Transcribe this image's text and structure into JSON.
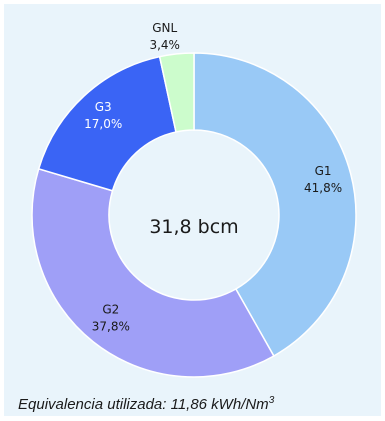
{
  "chart_data": {
    "type": "pie",
    "center_label": "31,8 bcm",
    "slices": [
      {
        "name": "G1",
        "value": 41.8,
        "label": "41,8%",
        "color": "#99c9f6",
        "text_color": "#1a1a1a"
      },
      {
        "name": "G2",
        "value": 37.8,
        "label": "37,8%",
        "color": "#9f9ff7",
        "text_color": "#1a1a1a"
      },
      {
        "name": "G3",
        "value": 17.0,
        "label": "17,0%",
        "color": "#3a64f5",
        "text_color": "#ffffff"
      },
      {
        "name": "GNL",
        "value": 3.4,
        "label": "3,4%",
        "color": "#ccfccc",
        "text_color": "#1a1a1a"
      }
    ]
  },
  "footnote": {
    "text": "Equivalencia utilizada: 11,86 kWh/Nm",
    "superscript": "3"
  }
}
